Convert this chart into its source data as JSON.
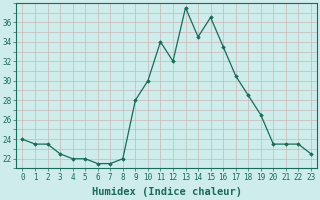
{
  "x": [
    0,
    1,
    2,
    3,
    4,
    5,
    6,
    7,
    8,
    9,
    10,
    11,
    12,
    13,
    14,
    15,
    16,
    17,
    18,
    19,
    20,
    21,
    22,
    23
  ],
  "y": [
    24.0,
    23.5,
    23.5,
    22.5,
    22.0,
    22.0,
    21.5,
    21.5,
    22.0,
    28.0,
    30.0,
    34.0,
    32.0,
    37.5,
    34.5,
    36.5,
    33.5,
    30.5,
    28.5,
    26.5,
    23.5,
    23.5,
    23.5,
    22.5
  ],
  "line_color": "#1a6b5a",
  "marker_color": "#1a6b5a",
  "bg_color": "#cdecea",
  "grid_color": "#c8b8b8",
  "xlabel": "Humidex (Indice chaleur)",
  "xlim": [
    -0.5,
    23.5
  ],
  "ylim": [
    21.0,
    38.0
  ],
  "yticks": [
    22,
    24,
    26,
    28,
    30,
    32,
    34,
    36
  ],
  "font_color": "#1a6b5a",
  "tick_fontsize": 5.5,
  "label_fontsize": 7.5
}
